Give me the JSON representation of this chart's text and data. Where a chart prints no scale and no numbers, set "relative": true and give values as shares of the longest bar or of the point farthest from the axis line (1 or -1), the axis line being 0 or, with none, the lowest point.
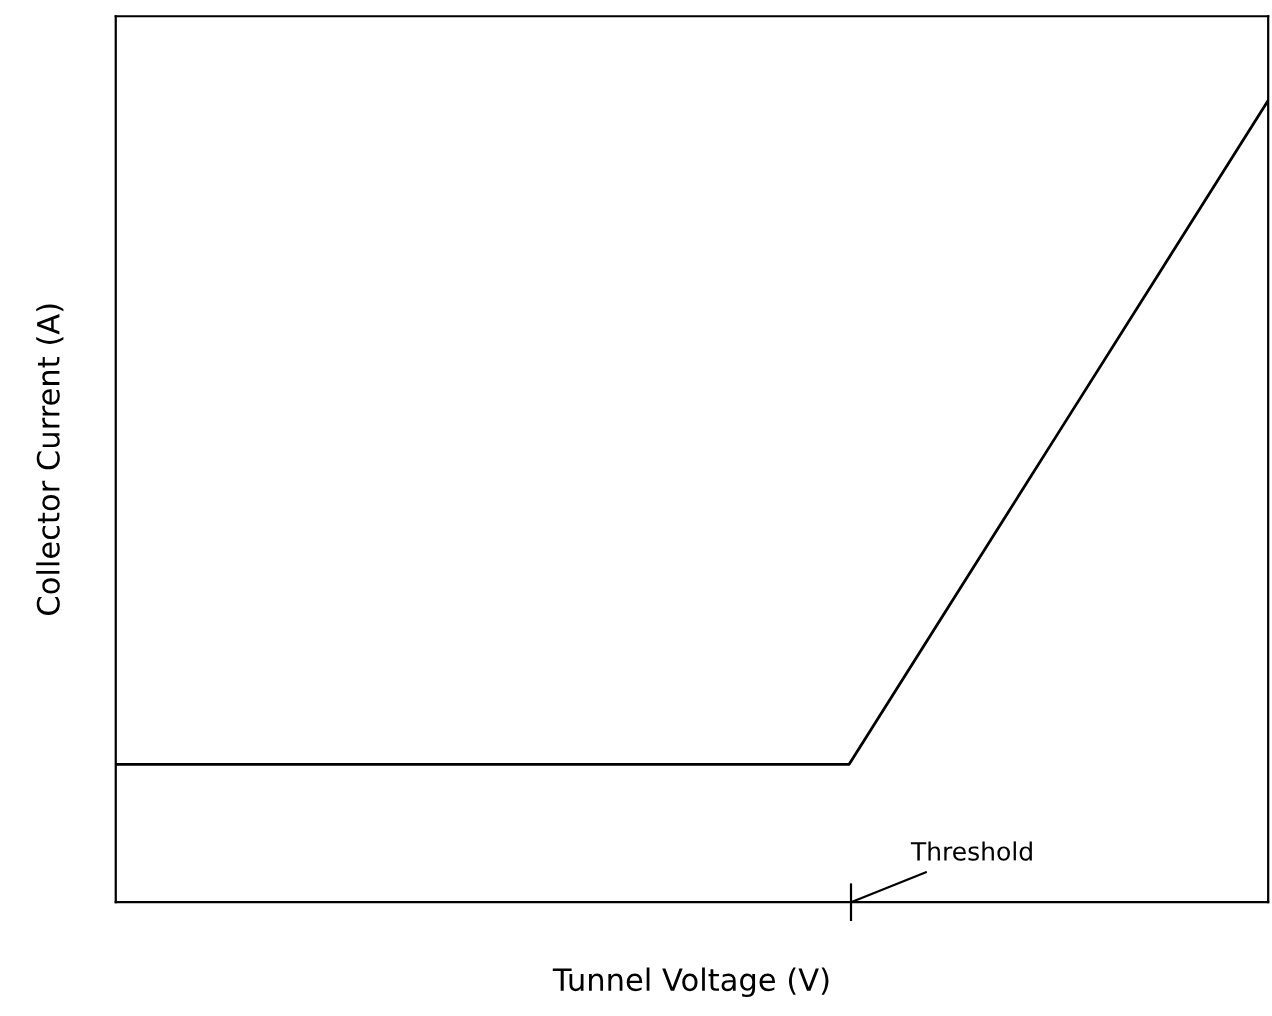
{
  "chart_data": {
    "type": "line",
    "relative": true,
    "xlabel": "Tunnel Voltage (V)",
    "ylabel": "Collector Current (A)",
    "categories": [
      null,
      null,
      null,
      null,
      null,
      null,
      null,
      null,
      null,
      null,
      null,
      null
    ],
    "series": [
      {
        "color": "#000000",
        "values": [
          0.172,
          0.172,
          0.172,
          0.172,
          0.172,
          0.172,
          0.172,
          0.172,
          0.379,
          0.586,
          0.793,
          1
        ]
      }
    ],
    "annotations": [
      "Threshold"
    ],
    "grid": false,
    "legend": false,
    "marker": "none",
    "line_style": "solid"
  }
}
